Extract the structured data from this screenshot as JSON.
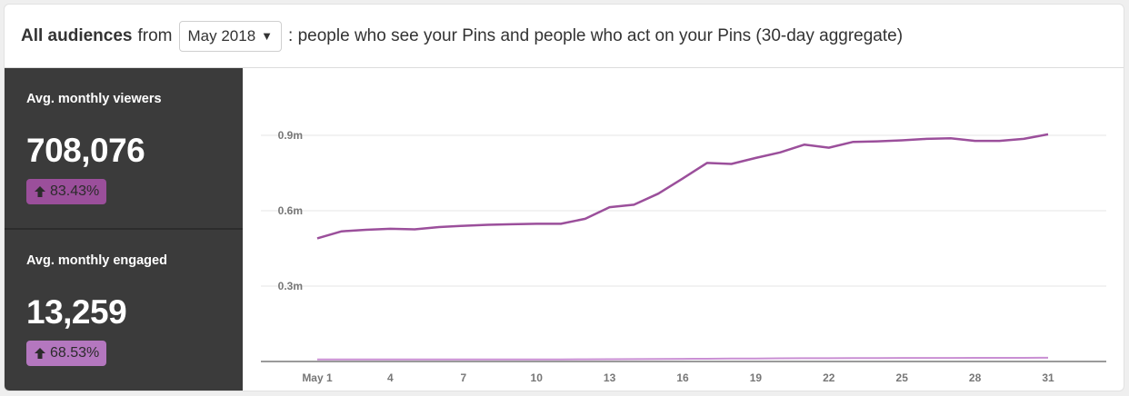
{
  "header": {
    "title": "All audiences",
    "from": "from",
    "month_selected": "May 2018",
    "description": ": people who see your Pins and people who act on your Pins (30-day aggregate)"
  },
  "metrics": [
    {
      "label": "Avg. monthly viewers",
      "value": "708,076",
      "change": "83.43%",
      "color": "#9b4f9b"
    },
    {
      "label": "Avg. monthly engaged",
      "value": "13,259",
      "change": "68.53%",
      "color": "#b477bf"
    }
  ],
  "icons": {
    "caret": "▼",
    "up_arrow": "up-arrow-icon"
  },
  "chart_data": {
    "type": "line",
    "x_tick_labels": [
      "May 1",
      "4",
      "7",
      "10",
      "13",
      "16",
      "19",
      "22",
      "25",
      "28",
      "31"
    ],
    "x_tick_days": [
      1,
      4,
      7,
      10,
      13,
      16,
      19,
      22,
      25,
      28,
      31
    ],
    "y_tick_labels": [
      "0.9m",
      "0.6m",
      "0.3m"
    ],
    "y_tick_values": [
      900000,
      600000,
      300000
    ],
    "ylim": [
      0,
      1000000
    ],
    "xlim": [
      1,
      31
    ],
    "grid": true,
    "series": [
      {
        "color": "#9b4f9b",
        "x": [
          1,
          2,
          3,
          4,
          5,
          6,
          7,
          8,
          9,
          10,
          11,
          12,
          13,
          14,
          15,
          16,
          17,
          18,
          19,
          20,
          21,
          22,
          23,
          24,
          25,
          26,
          27,
          28,
          29,
          30,
          31
        ],
        "values": [
          490000,
          518000,
          524000,
          528000,
          526000,
          535000,
          540000,
          544000,
          546000,
          548000,
          548000,
          568000,
          614000,
          624000,
          668000,
          728000,
          790000,
          786000,
          810000,
          832000,
          863000,
          851000,
          874000,
          876000,
          880000,
          886000,
          888000,
          878000,
          878000,
          886000,
          904000
        ]
      },
      {
        "color": "#c98fd3",
        "x": [
          1,
          2,
          3,
          4,
          5,
          6,
          7,
          8,
          9,
          10,
          11,
          12,
          13,
          14,
          15,
          16,
          17,
          18,
          19,
          20,
          21,
          22,
          23,
          24,
          25,
          26,
          27,
          28,
          29,
          30,
          31
        ],
        "values": [
          8000,
          8000,
          8000,
          8000,
          8000,
          8000,
          8000,
          8000,
          8000,
          8000,
          8000,
          8500,
          9000,
          9500,
          10000,
          10500,
          11000,
          11500,
          12000,
          12500,
          13000,
          13000,
          13500,
          13500,
          14000,
          14000,
          14000,
          14500,
          14500,
          14500,
          15000
        ]
      }
    ]
  }
}
